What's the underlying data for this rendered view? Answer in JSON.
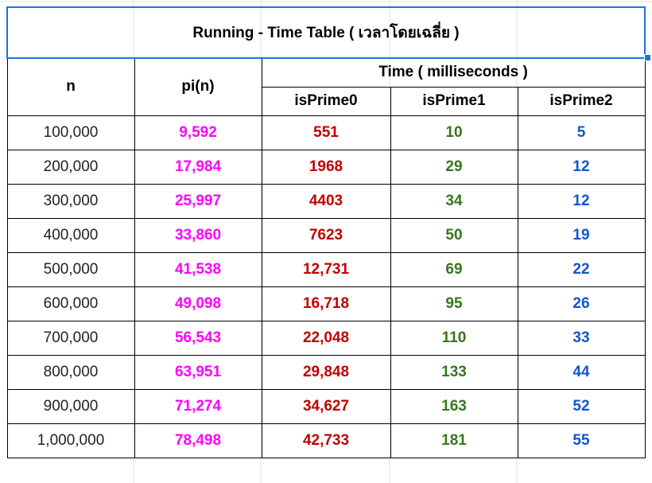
{
  "title": "Running - Time Table ( เวลาโดยเฉลี่ย )",
  "headers": {
    "n": "n",
    "pi": "pi(n)",
    "time_group": "Time ( milliseconds )",
    "c0": "isPrime0",
    "c1": "isPrime1",
    "c2": "isPrime2"
  },
  "colors": {
    "pi": "#ff00ff",
    "isPrime0": "#c00000",
    "isPrime1": "#38761d",
    "isPrime2": "#1155cc",
    "selection": "#1a73e8"
  },
  "rows": [
    {
      "n": "100,000",
      "pi": "9,592",
      "c0": "551",
      "c1": "10",
      "c2": "5"
    },
    {
      "n": "200,000",
      "pi": "17,984",
      "c0": "1968",
      "c1": "29",
      "c2": "12"
    },
    {
      "n": "300,000",
      "pi": "25,997",
      "c0": "4403",
      "c1": "34",
      "c2": "12"
    },
    {
      "n": "400,000",
      "pi": "33,860",
      "c0": "7623",
      "c1": "50",
      "c2": "19"
    },
    {
      "n": "500,000",
      "pi": "41,538",
      "c0": "12,731",
      "c1": "69",
      "c2": "22"
    },
    {
      "n": "600,000",
      "pi": "49,098",
      "c0": "16,718",
      "c1": "95",
      "c2": "26"
    },
    {
      "n": "700,000",
      "pi": "56,543",
      "c0": "22,048",
      "c1": "110",
      "c2": "33"
    },
    {
      "n": "800,000",
      "pi": "63,951",
      "c0": "29,848",
      "c1": "133",
      "c2": "44"
    },
    {
      "n": "900,000",
      "pi": "71,274",
      "c0": "34,627",
      "c1": "163",
      "c2": "52"
    },
    {
      "n": "1,000,000",
      "pi": "78,498",
      "c0": "42,733",
      "c1": "181",
      "c2": "55"
    }
  ]
}
